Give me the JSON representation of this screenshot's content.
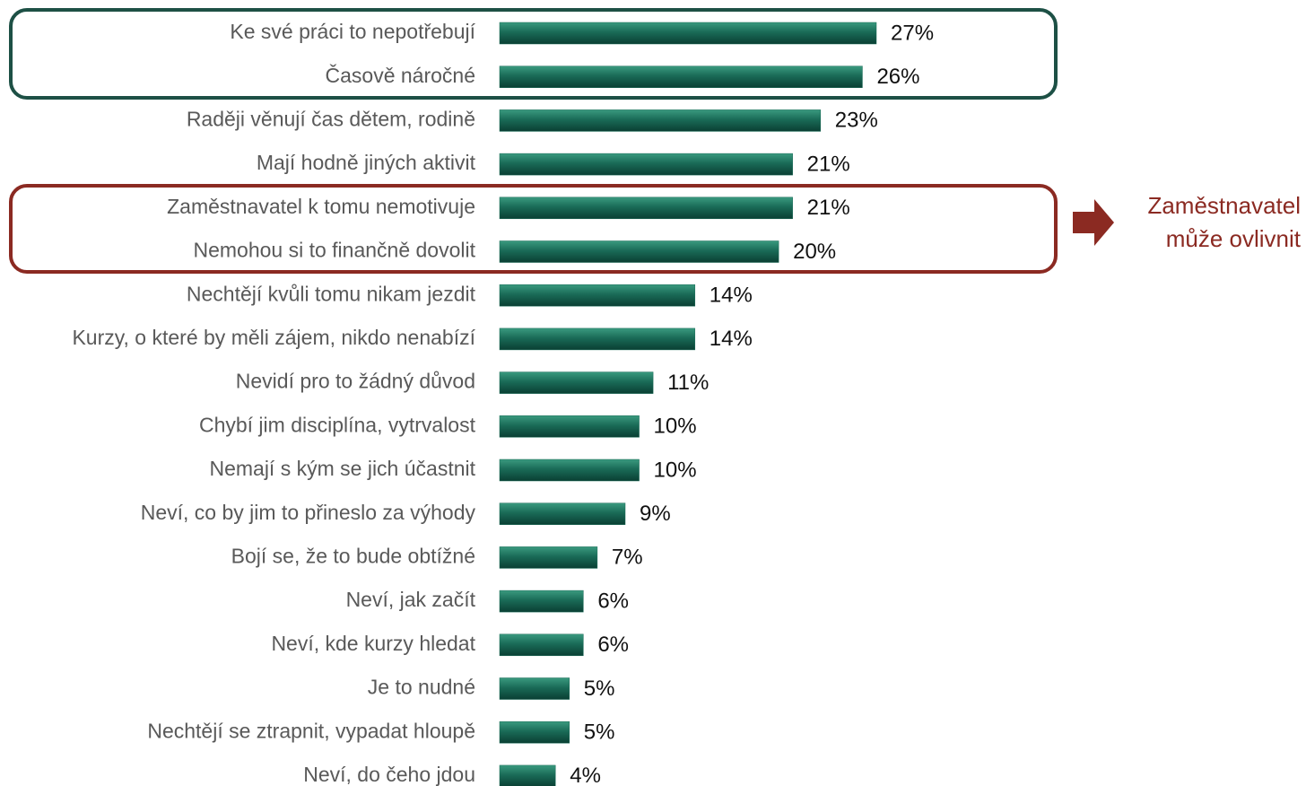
{
  "chart_data": {
    "type": "bar",
    "orientation": "horizontal",
    "categories": [
      "Ke své práci to nepotřebují",
      "Časově náročné",
      "Raději věnují čas dětem, rodině",
      "Mají hodně jiných aktivit",
      "Zaměstnavatel k tomu nemotivuje",
      "Nemohou si to finančně dovolit",
      "Nechtějí kvůli tomu nikam jezdit",
      "Kurzy, o které by měli zájem, nikdo nenabízí",
      "Nevidí pro to žádný důvod",
      "Chybí jim disciplína, vytrvalost",
      "Nemají s kým se jich účastnit",
      "Neví, co by jim to přineslo za výhody",
      "Bojí se, že to bude obtížné",
      "Neví, jak začít",
      "Neví, kde kurzy hledat",
      "Je to nudné",
      "Nechtějí se ztrapnit, vypadat hloupě",
      "Neví, do čeho jdou"
    ],
    "values": [
      27,
      26,
      23,
      21,
      21,
      20,
      14,
      14,
      11,
      10,
      10,
      9,
      7,
      6,
      6,
      5,
      5,
      4
    ],
    "value_labels": [
      "27%",
      "26%",
      "23%",
      "21%",
      "21%",
      "20%",
      "14%",
      "14%",
      "11%",
      "10%",
      "10%",
      "9%",
      "7%",
      "6%",
      "6%",
      "5%",
      "5%",
      "4%"
    ],
    "color": "#1a6b57",
    "annotation": [
      "Zaměstnavatel",
      "může ovlivnit"
    ]
  }
}
